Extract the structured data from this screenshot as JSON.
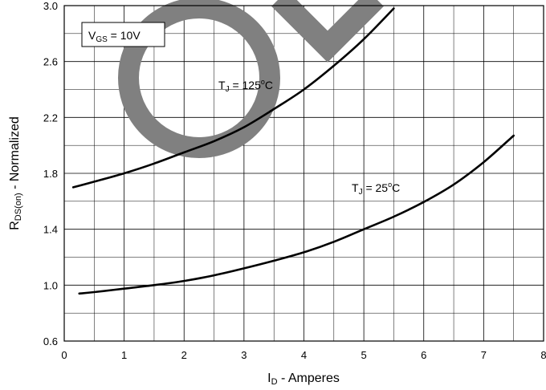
{
  "chart_data": {
    "type": "line",
    "title": "",
    "xlabel": {
      "main": "I",
      "sub": "D",
      "rest": " - Amperes"
    },
    "ylabel": {
      "main": "R",
      "sub": "DS(on)",
      "rest": " - Normalized"
    },
    "xlim": [
      0,
      8
    ],
    "ylim": [
      0.6,
      3.0
    ],
    "x_ticks": [
      "0",
      "1",
      "2",
      "3",
      "4",
      "5",
      "6",
      "7",
      "8"
    ],
    "y_ticks": [
      "0.6",
      "1.0",
      "1.4",
      "1.8",
      "2.2",
      "2.6",
      "3.0"
    ],
    "grid": true,
    "condition_box": {
      "main": "V",
      "sub": "GS",
      "rest": " = 10V"
    },
    "series": [
      {
        "label": {
          "main": "T",
          "sub": "J",
          "mid": " = 125",
          "sup": "o",
          "end": "C"
        },
        "x": [
          0.15,
          0.5,
          1.0,
          1.5,
          2.0,
          2.5,
          3.0,
          3.5,
          4.0,
          4.5,
          5.0,
          5.5
        ],
        "y": [
          1.7,
          1.74,
          1.8,
          1.87,
          1.95,
          2.03,
          2.13,
          2.26,
          2.4,
          2.57,
          2.76,
          2.98
        ]
      },
      {
        "label": {
          "main": "T",
          "sub": "J",
          "mid": " = 25",
          "sup": "o",
          "end": "C"
        },
        "x": [
          0.25,
          0.5,
          1.0,
          1.5,
          2.0,
          2.5,
          3.0,
          3.5,
          4.0,
          4.5,
          5.0,
          5.5,
          6.0,
          6.5,
          7.0,
          7.5
        ],
        "y": [
          0.94,
          0.95,
          0.975,
          1.0,
          1.03,
          1.07,
          1.12,
          1.175,
          1.235,
          1.31,
          1.4,
          1.49,
          1.595,
          1.72,
          1.88,
          2.07
        ]
      }
    ],
    "watermark_color": "#808080",
    "line_color": "#000000",
    "grid_color": "#000000"
  }
}
